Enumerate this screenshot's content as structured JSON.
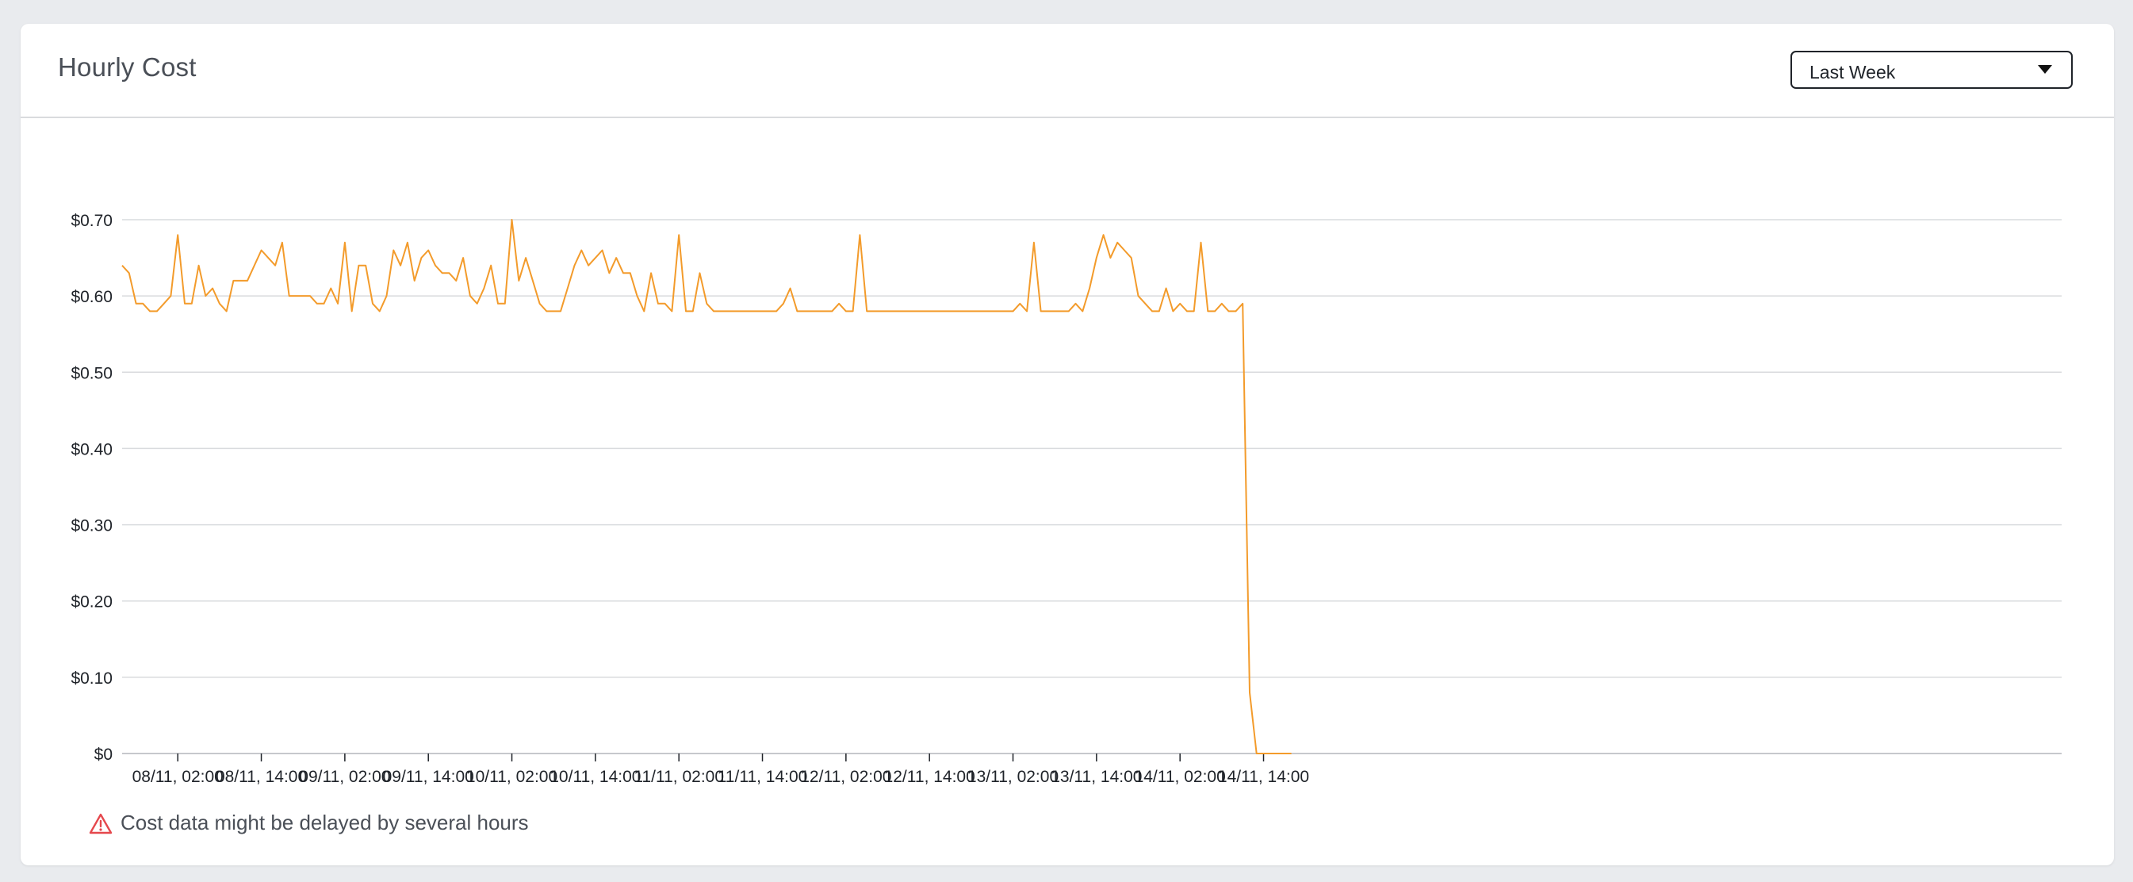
{
  "card": {
    "title": "Hourly Cost"
  },
  "range_select": {
    "selected": "Last Week"
  },
  "warning": {
    "icon": "warning-triangle-icon",
    "text": "Cost data might be delayed by several hours"
  },
  "colors": {
    "series": "#f39b2b",
    "grid": "#d9dbde",
    "warning": "#e5484d",
    "text": "#4a4f57"
  },
  "chart_data": {
    "type": "line",
    "title": "Hourly Cost",
    "xlabel": "",
    "ylabel": "",
    "ylim": [
      0,
      0.7
    ],
    "yticks": [
      0,
      0.1,
      0.2,
      0.3,
      0.4,
      0.5,
      0.6,
      0.7
    ],
    "ytick_labels": [
      "$0",
      "$0.10",
      "$0.20",
      "$0.30",
      "$0.40",
      "$0.50",
      "$0.60",
      "$0.70"
    ],
    "xtick_labels": [
      "08/11, 02:00",
      "08/11, 14:00",
      "09/11, 02:00",
      "09/11, 14:00",
      "10/11, 02:00",
      "10/11, 14:00",
      "11/11, 02:00",
      "11/11, 14:00",
      "12/11, 02:00",
      "12/11, 14:00",
      "13/11, 02:00",
      "13/11, 14:00",
      "14/11, 02:00",
      "14/11, 14:00"
    ],
    "xtick_hours": [
      8,
      20,
      32,
      44,
      56,
      68,
      80,
      92,
      104,
      116,
      128,
      140,
      152,
      164
    ],
    "grid": true,
    "legend": "none",
    "series": [
      {
        "values": [
          0.64,
          0.63,
          0.59,
          0.59,
          0.58,
          0.58,
          0.59,
          0.6,
          0.68,
          0.59,
          0.59,
          0.64,
          0.6,
          0.61,
          0.59,
          0.58,
          0.62,
          0.62,
          0.62,
          0.64,
          0.66,
          0.65,
          0.64,
          0.67,
          0.6,
          0.6,
          0.6,
          0.6,
          0.59,
          0.59,
          0.61,
          0.59,
          0.67,
          0.58,
          0.64,
          0.64,
          0.59,
          0.58,
          0.6,
          0.66,
          0.64,
          0.67,
          0.62,
          0.65,
          0.66,
          0.64,
          0.63,
          0.63,
          0.62,
          0.65,
          0.6,
          0.59,
          0.61,
          0.64,
          0.59,
          0.59,
          0.7,
          0.62,
          0.65,
          0.62,
          0.59,
          0.58,
          0.58,
          0.58,
          0.61,
          0.64,
          0.66,
          0.64,
          0.65,
          0.66,
          0.63,
          0.65,
          0.63,
          0.63,
          0.6,
          0.58,
          0.63,
          0.59,
          0.59,
          0.58,
          0.68,
          0.58,
          0.58,
          0.63,
          0.59,
          0.58,
          0.58,
          0.58,
          0.58,
          0.58,
          0.58,
          0.58,
          0.58,
          0.58,
          0.58,
          0.59,
          0.61,
          0.58,
          0.58,
          0.58,
          0.58,
          0.58,
          0.58,
          0.59,
          0.58,
          0.58,
          0.68,
          0.58,
          0.58,
          0.58,
          0.58,
          0.58,
          0.58,
          0.58,
          0.58,
          0.58,
          0.58,
          0.58,
          0.58,
          0.58,
          0.58,
          0.58,
          0.58,
          0.58,
          0.58,
          0.58,
          0.58,
          0.58,
          0.58,
          0.59,
          0.58,
          0.67,
          0.58,
          0.58,
          0.58,
          0.58,
          0.58,
          0.59,
          0.58,
          0.61,
          0.65,
          0.68,
          0.65,
          0.67,
          0.66,
          0.65,
          0.6,
          0.59,
          0.58,
          0.58,
          0.61,
          0.58,
          0.59,
          0.58,
          0.58,
          0.67,
          0.58,
          0.58,
          0.59,
          0.58,
          0.58,
          0.59,
          0.08,
          0.0,
          0.0,
          0.0,
          0.0,
          0.0,
          0.0
        ]
      }
    ]
  }
}
